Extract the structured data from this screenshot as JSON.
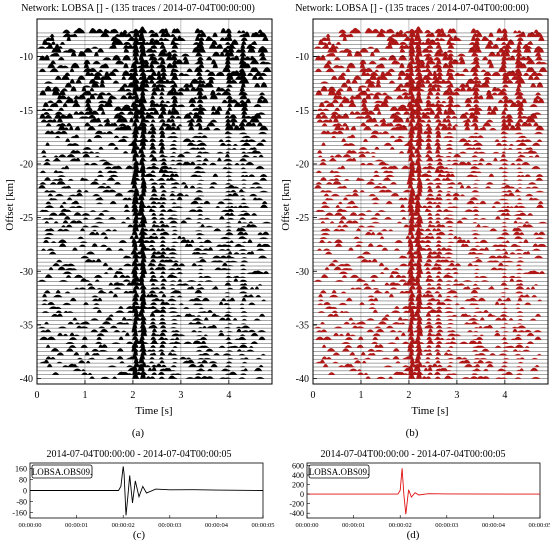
{
  "colors": {
    "wiggle_a": "#000000",
    "wiggle_b": "#b01818",
    "trace_line": "#000000",
    "grid": "#9a9a9a",
    "axis": "#000000"
  },
  "chart_data": [
    {
      "type": "line",
      "panel_label": "(a)",
      "title": "Network: LOBSA [] - (135 traces / 2014-07-04T00:00:00)",
      "xlabel": "Time [s]",
      "ylabel": "Offset [km]",
      "xlim": [
        0,
        4.9
      ],
      "ylim": [
        -40.5,
        -6.5
      ],
      "x_ticks": [
        0,
        1,
        2,
        3,
        4
      ],
      "x_tick_labels": [
        "0",
        "1",
        "2",
        "3",
        "4"
      ],
      "y_ticks": [
        -10,
        -15,
        -20,
        -25,
        -30,
        -35,
        -40
      ],
      "y_tick_labels": [
        "-10",
        "-15",
        "-20",
        "-25",
        "-30",
        "-35",
        "-40"
      ],
      "trace_count": 135,
      "fill_color": "black",
      "grid": true
    },
    {
      "type": "line",
      "panel_label": "(b)",
      "title": "Network: LOBSA [] - (135 traces / 2014-07-04T00:00:00)",
      "xlabel": "Time [s]",
      "ylabel": "Offset [km]",
      "xlim": [
        0,
        4.9
      ],
      "ylim": [
        -40.5,
        -6.5
      ],
      "x_ticks": [
        0,
        1,
        2,
        3,
        4
      ],
      "x_tick_labels": [
        "0",
        "1",
        "2",
        "3",
        "4"
      ],
      "y_ticks": [
        -10,
        -15,
        -20,
        -25,
        -30,
        -35,
        -40
      ],
      "y_tick_labels": [
        "-10",
        "-15",
        "-20",
        "-25",
        "-30",
        "-35",
        "-40"
      ],
      "trace_count": 135,
      "fill_color": "red",
      "grid": true
    },
    {
      "type": "line",
      "panel_label": "(c)",
      "title": "2014-07-04T00:00:00  -  2014-07-04T00:00:05",
      "trace_label": "LOBSA.OBS09.",
      "xlim": [
        0,
        5
      ],
      "x_tick_labels": [
        "00:00:00",
        "00:00:01",
        "00:00:02",
        "00:00:03",
        "00:00:04",
        "00:00:05"
      ],
      "ylim": [
        -200,
        200
      ],
      "y_ticks": [
        160,
        80,
        0,
        -80,
        -160
      ],
      "y_tick_labels": [
        "160",
        "80",
        "0",
        "-80",
        "-160"
      ],
      "series": [
        {
          "x": [
            0,
            1.9,
            1.95,
            2.0,
            2.02,
            2.06,
            2.1,
            2.14,
            2.2,
            2.26,
            2.34,
            2.42,
            2.5,
            2.7,
            3.0,
            3.5,
            4.0,
            5.0
          ],
          "values": [
            0,
            0,
            30,
            175,
            120,
            -180,
            -40,
            110,
            -90,
            70,
            -45,
            30,
            -18,
            10,
            5,
            6,
            3,
            0
          ]
        }
      ]
    },
    {
      "type": "line",
      "panel_label": "(d)",
      "title": "2014-07-04T00:00:00  -  2014-07-04T00:00:05",
      "trace_label": "LOBSA.OBS09.",
      "xlim": [
        0,
        5
      ],
      "x_tick_labels": [
        "00:00:00",
        "00:00:01",
        "00:00:02",
        "00:00:03",
        "00:00:04",
        "00:00:05"
      ],
      "ylim": [
        -500,
        650
      ],
      "y_ticks": [
        600,
        400,
        200,
        0,
        -200,
        -400
      ],
      "y_tick_labels": [
        "600",
        "400",
        "200",
        "0",
        "-200",
        "-400"
      ],
      "series": [
        {
          "x": [
            0,
            1.95,
            2.0,
            2.04,
            2.08,
            2.12,
            2.18,
            2.24,
            2.32,
            2.4,
            2.6,
            3.0,
            5.0
          ],
          "values": [
            0,
            0,
            80,
            540,
            -20,
            -420,
            90,
            -60,
            30,
            -20,
            8,
            3,
            0
          ]
        }
      ]
    }
  ]
}
